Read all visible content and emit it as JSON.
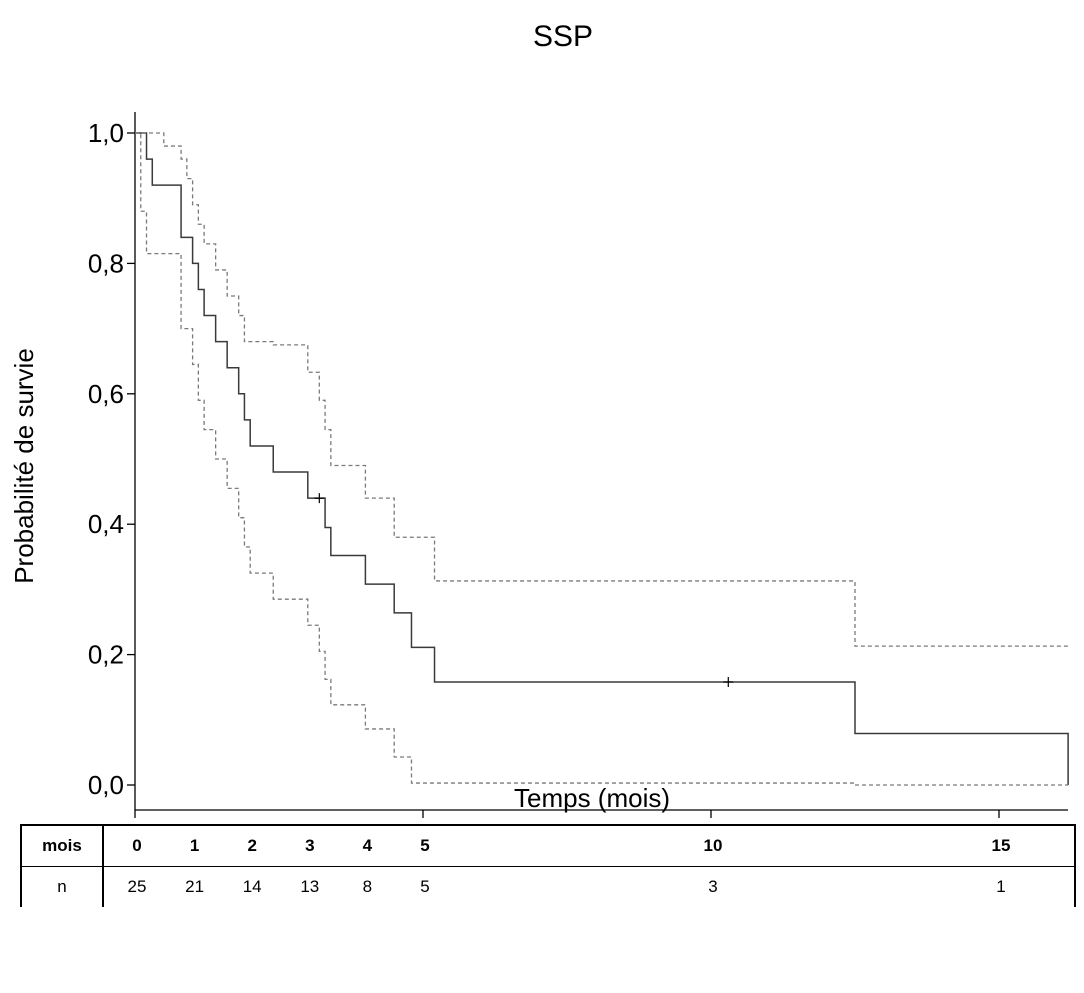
{
  "chart_data": {
    "type": "line",
    "title": "SSP",
    "xlabel": "Temps (mois)",
    "ylabel": "Probabilité de survie",
    "xlim": [
      0,
      16.2
    ],
    "ylim": [
      0,
      1
    ],
    "x_ticks": [
      0,
      5,
      10,
      15
    ],
    "x_tick_labels": [
      "0",
      "5",
      "10",
      "15"
    ],
    "y_ticks": [
      0,
      0.2,
      0.4,
      0.6,
      0.8,
      1.0
    ],
    "y_tick_labels": [
      "0,0",
      "0,2",
      "0,4",
      "0,6",
      "0,8",
      "1,0"
    ],
    "grid": false,
    "series": [
      {
        "style": "solid",
        "x": [
          0,
          0.2,
          0.3,
          0.8,
          1.0,
          1.1,
          1.2,
          1.4,
          1.6,
          1.8,
          1.9,
          2.0,
          2.4,
          3.0,
          3.2,
          3.3,
          3.4,
          4.0,
          4.5,
          4.8,
          5.2,
          12.5,
          16.2
        ],
        "y": [
          1.0,
          0.96,
          0.92,
          0.84,
          0.8,
          0.76,
          0.72,
          0.68,
          0.64,
          0.6,
          0.56,
          0.52,
          0.48,
          0.44,
          0.44,
          0.395,
          0.352,
          0.308,
          0.264,
          0.211,
          0.158,
          0.079,
          0.0
        ],
        "censored": [
          [
            3.2,
            0.44
          ],
          [
            10.3,
            0.158
          ]
        ]
      },
      {
        "style": "dashed",
        "x": [
          0,
          0.5,
          0.8,
          0.9,
          1.0,
          1.1,
          1.2,
          1.4,
          1.6,
          1.8,
          1.9,
          2.0,
          2.4,
          3.0,
          3.2,
          3.3,
          3.4,
          4.0,
          4.5,
          4.8,
          5.2,
          12.5,
          16.2
        ],
        "y": [
          1.0,
          0.98,
          0.96,
          0.93,
          0.89,
          0.86,
          0.83,
          0.79,
          0.75,
          0.72,
          0.68,
          0.68,
          0.675,
          0.633,
          0.59,
          0.545,
          0.49,
          0.44,
          0.38,
          0.38,
          0.313,
          0.213,
          0.213
        ]
      },
      {
        "style": "dashed",
        "x": [
          0,
          0.1,
          0.2,
          0.8,
          1.0,
          1.1,
          1.2,
          1.4,
          1.6,
          1.8,
          1.9,
          2.0,
          2.4,
          3.0,
          3.2,
          3.3,
          3.4,
          4.0,
          4.5,
          4.8,
          5.2,
          12.5,
          16.2
        ],
        "y": [
          1.0,
          0.88,
          0.815,
          0.7,
          0.645,
          0.59,
          0.545,
          0.5,
          0.455,
          0.41,
          0.365,
          0.325,
          0.285,
          0.245,
          0.205,
          0.162,
          0.123,
          0.086,
          0.043,
          0.003,
          0.003,
          0.0,
          0.0
        ]
      }
    ]
  },
  "table": {
    "header_label": "mois",
    "header_values": [
      "0",
      "1",
      "2",
      "3",
      "4",
      "5",
      "10",
      "15"
    ],
    "row_label": "n",
    "row_values": [
      "25",
      "21",
      "14",
      "13",
      "8",
      "5",
      "3",
      "1"
    ]
  }
}
